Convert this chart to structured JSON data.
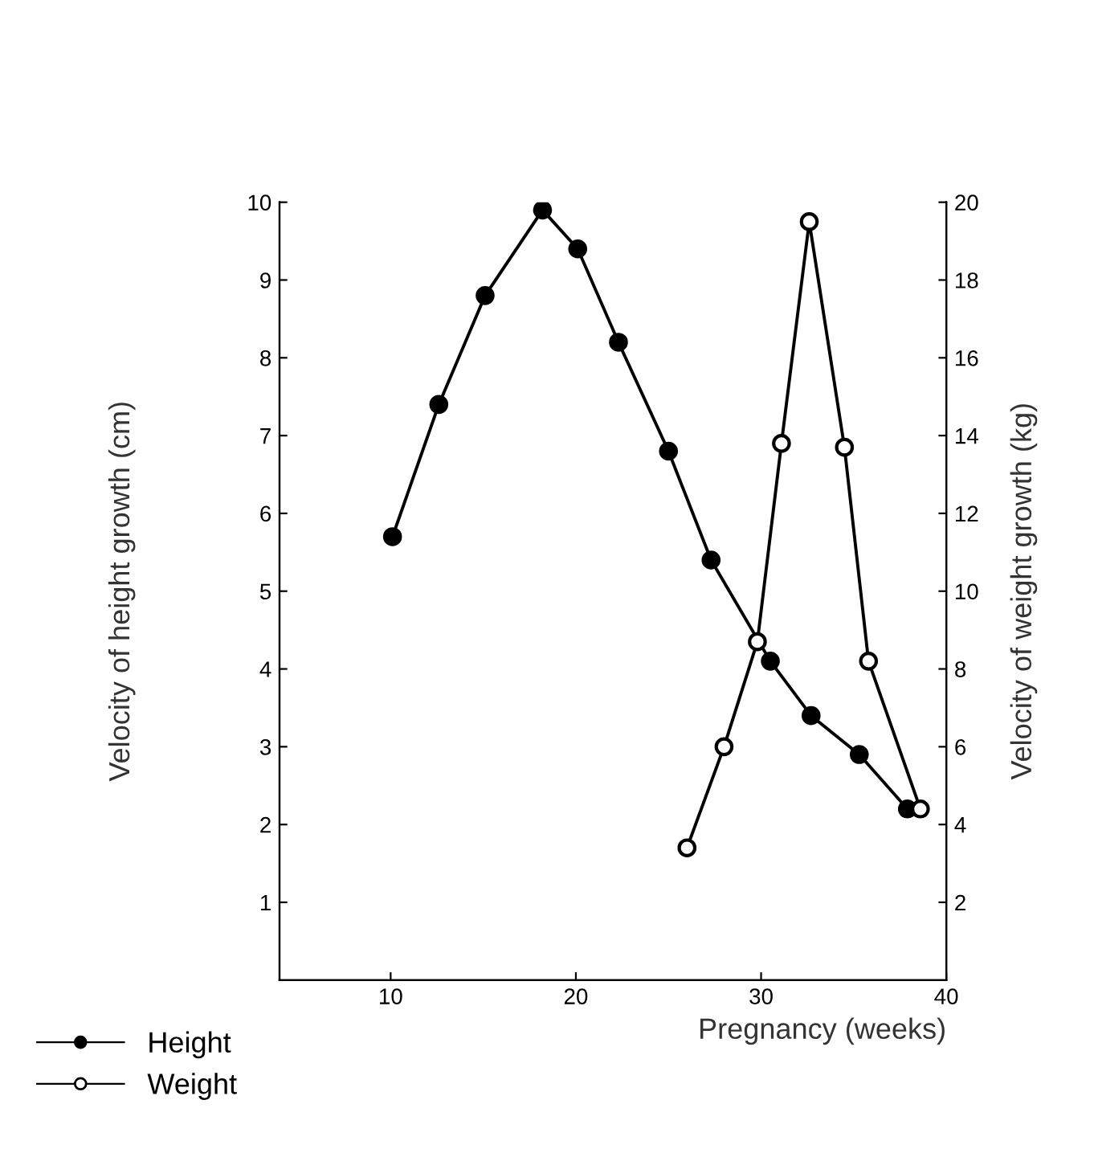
{
  "chart_data": {
    "type": "line",
    "xlabel": "Pregnancy (weeks)",
    "ylabel": "Velocity of height growth (cm)",
    "y2label": "Velocity of weight growth (kg)",
    "xlim": [
      4,
      40
    ],
    "xticks": [
      10,
      20,
      30,
      40
    ],
    "ylim": [
      0,
      10
    ],
    "yticks": [
      1,
      2,
      3,
      4,
      5,
      6,
      7,
      8,
      9,
      10
    ],
    "y2lim": [
      0,
      20
    ],
    "y2ticks": [
      2,
      4,
      6,
      8,
      10,
      12,
      14,
      16,
      18,
      20
    ],
    "grid": false,
    "legend": "bottom left",
    "marker": "circle",
    "line_style": "solid",
    "series": [
      {
        "name": "Height",
        "color": "#000000",
        "x": [
          10.1,
          12.6,
          15.1,
          18.2,
          20.1,
          22.3,
          25.0,
          27.3,
          30.5,
          32.7,
          35.3,
          37.9
        ],
        "values": [
          5.7,
          7.4,
          8.8,
          9.9,
          9.4,
          8.2,
          6.8,
          5.4,
          4.1,
          3.4,
          2.9,
          2.2
        ]
      },
      {
        "name": "Weight",
        "color": "#000000",
        "axis": "y2",
        "x": [
          26.0,
          28.0,
          29.8,
          31.1,
          32.6,
          34.5,
          35.8,
          38.6
        ],
        "values": [
          3.4,
          6.0,
          8.7,
          13.8,
          19.5,
          13.7,
          8.2,
          4.4
        ]
      }
    ]
  }
}
